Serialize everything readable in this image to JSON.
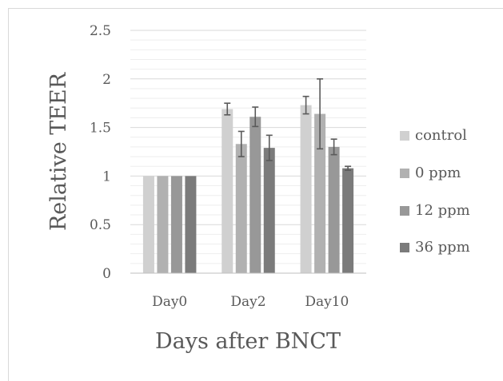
{
  "chart_data": {
    "type": "bar",
    "xlabel": "Days after BNCT",
    "ylabel": "Relative  TEER",
    "ylim": [
      0,
      2.5
    ],
    "yticks": [
      "0",
      "0.5",
      "1",
      "1.5",
      "2",
      "2.5"
    ],
    "ytick_values": [
      0,
      0.5,
      1,
      1.5,
      2,
      2.5
    ],
    "minor_grid_step": 0.1,
    "grid": true,
    "legend_position": "right",
    "categories": [
      "Day0",
      "Day2",
      "Day10"
    ],
    "series": [
      {
        "name": "control",
        "color": "#d0d0d0",
        "values": [
          1.0,
          1.69,
          1.73
        ],
        "errors": [
          0,
          0.06,
          0.09
        ]
      },
      {
        "name": "0 ppm",
        "color": "#b1b1b1",
        "values": [
          1.0,
          1.33,
          1.64
        ],
        "errors": [
          0,
          0.13,
          0.36
        ]
      },
      {
        "name": "12 ppm",
        "color": "#989898",
        "values": [
          1.0,
          1.61,
          1.3
        ],
        "errors": [
          0,
          0.1,
          0.08
        ]
      },
      {
        "name": "36 ppm",
        "color": "#7b7b7b",
        "values": [
          1.0,
          1.29,
          1.08
        ],
        "errors": [
          0,
          0.13,
          0.02
        ]
      }
    ]
  }
}
